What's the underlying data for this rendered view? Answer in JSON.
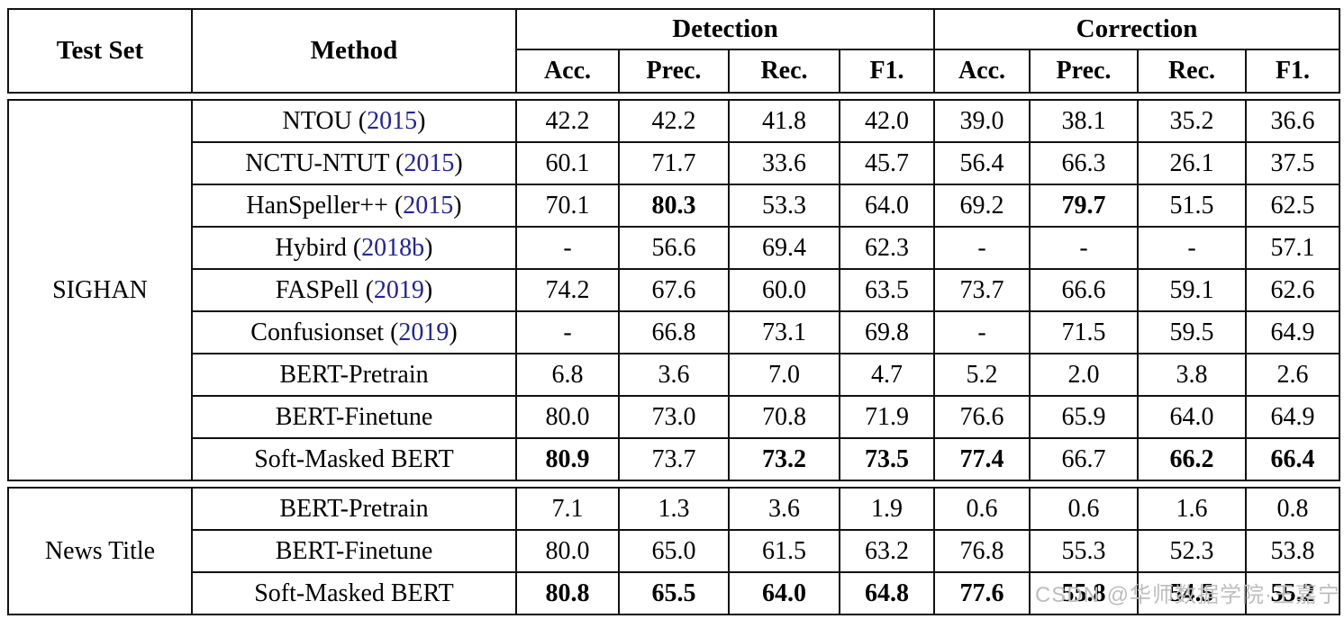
{
  "colors": {
    "cite": "#22229c",
    "watermark": "#bdbdbd"
  },
  "watermark": "CSDN @华师数据学院·王嘉宁",
  "header": {
    "test_set": "Test Set",
    "method": "Method",
    "groups": [
      {
        "label": "Detection"
      },
      {
        "label": "Correction"
      }
    ],
    "metrics": [
      "Acc.",
      "Prec.",
      "Rec.",
      "F1."
    ]
  },
  "sections": [
    {
      "test_set": "SIGHAN",
      "rows": [
        {
          "method": "NTOU",
          "cite": "2015",
          "values": [
            "42.2",
            "42.2",
            "41.8",
            "42.0",
            "39.0",
            "38.1",
            "35.2",
            "36.6"
          ],
          "bold": []
        },
        {
          "method": "NCTU-NTUT",
          "cite": "2015",
          "values": [
            "60.1",
            "71.7",
            "33.6",
            "45.7",
            "56.4",
            "66.3",
            "26.1",
            "37.5"
          ],
          "bold": []
        },
        {
          "method": "HanSpeller++",
          "cite": "2015",
          "values": [
            "70.1",
            "80.3",
            "53.3",
            "64.0",
            "69.2",
            "79.7",
            "51.5",
            "62.5"
          ],
          "bold": [
            1,
            5
          ]
        },
        {
          "method": "Hybird",
          "cite": "2018b",
          "values": [
            "-",
            "56.6",
            "69.4",
            "62.3",
            "-",
            "-",
            "-",
            "57.1"
          ],
          "bold": []
        },
        {
          "method": "FASPell",
          "cite": "2019",
          "values": [
            "74.2",
            "67.6",
            "60.0",
            "63.5",
            "73.7",
            "66.6",
            "59.1",
            "62.6"
          ],
          "bold": []
        },
        {
          "method": "Confusionset",
          "cite": "2019",
          "values": [
            "-",
            "66.8",
            "73.1",
            "69.8",
            "-",
            "71.5",
            "59.5",
            "64.9"
          ],
          "bold": []
        },
        {
          "method": "BERT-Pretrain",
          "cite": "",
          "values": [
            "6.8",
            "3.6",
            "7.0",
            "4.7",
            "5.2",
            "2.0",
            "3.8",
            "2.6"
          ],
          "bold": []
        },
        {
          "method": "BERT-Finetune",
          "cite": "",
          "values": [
            "80.0",
            "73.0",
            "70.8",
            "71.9",
            "76.6",
            "65.9",
            "64.0",
            "64.9"
          ],
          "bold": []
        },
        {
          "method": "Soft-Masked BERT",
          "cite": "",
          "values": [
            "80.9",
            "73.7",
            "73.2",
            "73.5",
            "77.4",
            "66.7",
            "66.2",
            "66.4"
          ],
          "bold": [
            0,
            2,
            3,
            4,
            6,
            7
          ]
        }
      ]
    },
    {
      "test_set": "News Title",
      "rows": [
        {
          "method": "BERT-Pretrain",
          "cite": "",
          "values": [
            "7.1",
            "1.3",
            "3.6",
            "1.9",
            "0.6",
            "0.6",
            "1.6",
            "0.8"
          ],
          "bold": []
        },
        {
          "method": "BERT-Finetune",
          "cite": "",
          "values": [
            "80.0",
            "65.0",
            "61.5",
            "63.2",
            "76.8",
            "55.3",
            "52.3",
            "53.8"
          ],
          "bold": []
        },
        {
          "method": "Soft-Masked BERT",
          "cite": "",
          "values": [
            "80.8",
            "65.5",
            "64.0",
            "64.8",
            "77.6",
            "55.8",
            "54.5",
            "55.2"
          ],
          "bold": [
            0,
            1,
            2,
            3,
            4,
            5,
            6,
            7
          ]
        }
      ]
    }
  ]
}
